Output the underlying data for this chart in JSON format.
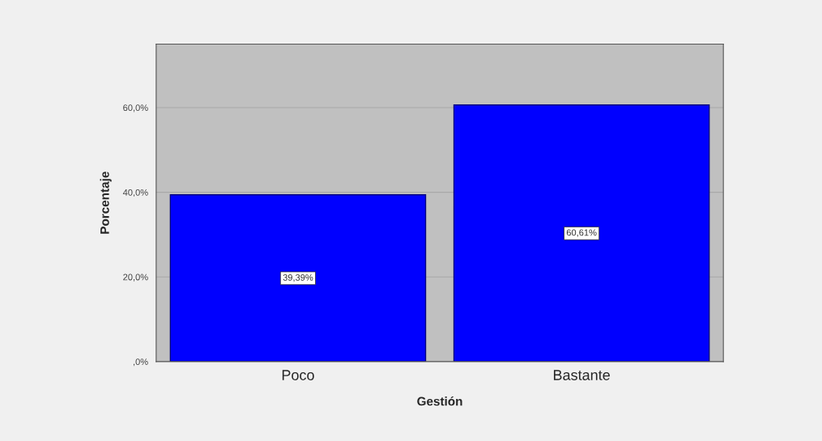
{
  "chart_data": {
    "type": "bar",
    "xlabel": "Gestión",
    "ylabel": "Porcentaje",
    "categories": [
      "Poco",
      "Bastante"
    ],
    "values": [
      39.39,
      60.61
    ],
    "color": "#0000ff",
    "value_labels": [
      "39,39%",
      "60,61%"
    ],
    "ylim": [
      0,
      75
    ],
    "yticks": [
      {
        "value": 0,
        "label": ",0%"
      },
      {
        "value": 20,
        "label": "20,0%"
      },
      {
        "value": 40,
        "label": "40,0%"
      },
      {
        "value": 60,
        "label": "60,0%"
      }
    ],
    "grid": "y"
  }
}
